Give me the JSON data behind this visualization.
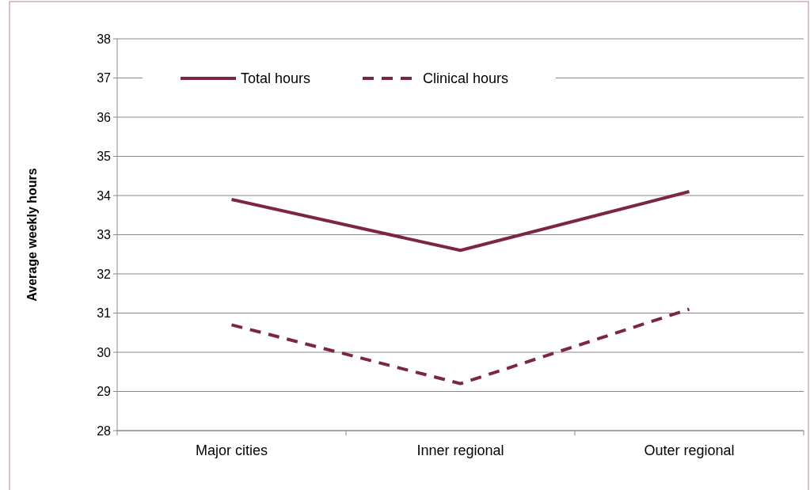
{
  "chart_data": {
    "type": "line",
    "ylabel": "Average weekly hours",
    "categories": [
      "Major cities",
      "Inner regional",
      "Outer regional"
    ],
    "series": [
      {
        "name": "Total hours",
        "color": "#7b2645",
        "values": [
          33.9,
          32.6,
          34.1
        ],
        "line_style": "solid"
      },
      {
        "name": "Clinical hours",
        "color": "#7b2645",
        "values": [
          30.7,
          29.2,
          31.1
        ],
        "line_style": "dashed"
      }
    ],
    "ylim": [
      28,
      38
    ],
    "yticks": [
      28,
      29,
      30,
      31,
      32,
      33,
      34,
      35,
      36,
      37,
      38
    ],
    "grid": "y",
    "legend": "top",
    "marker": "none"
  }
}
